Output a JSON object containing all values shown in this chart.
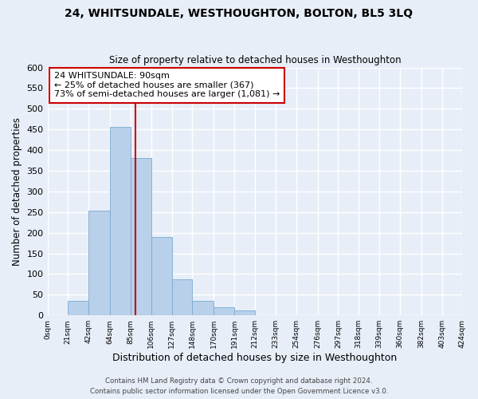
{
  "title": "24, WHITSUNDALE, WESTHOUGHTON, BOLTON, BL5 3LQ",
  "subtitle": "Size of property relative to detached houses in Westhoughton",
  "xlabel": "Distribution of detached houses by size in Westhoughton",
  "ylabel": "Number of detached properties",
  "bin_edges": [
    0,
    21,
    42,
    64,
    85,
    106,
    127,
    148,
    170,
    191,
    212,
    233,
    254,
    276,
    297,
    318,
    339,
    360,
    382,
    403,
    424
  ],
  "bar_heights": [
    0,
    35,
    253,
    457,
    380,
    190,
    88,
    35,
    20,
    12,
    0,
    0,
    0,
    0,
    0,
    0,
    0,
    0,
    0,
    0
  ],
  "bar_color": "#b8d0ea",
  "bar_edge_color": "#7aaacf",
  "vline_x": 90,
  "vline_color": "#cc0000",
  "ylim": [
    0,
    600
  ],
  "yticks": [
    0,
    50,
    100,
    150,
    200,
    250,
    300,
    350,
    400,
    450,
    500,
    550,
    600
  ],
  "annotation_line1": "24 WHITSUNDALE: 90sqm",
  "annotation_line2": "← 25% of detached houses are smaller (367)",
  "annotation_line3": "73% of semi-detached houses are larger (1,081) →",
  "annotation_box_color": "#ffffff",
  "annotation_box_edge": "#cc0000",
  "footer1": "Contains HM Land Registry data © Crown copyright and database right 2024.",
  "footer2": "Contains public sector information licensed under the Open Government Licence v3.0.",
  "tick_labels": [
    "0sqm",
    "21sqm",
    "42sqm",
    "64sqm",
    "85sqm",
    "106sqm",
    "127sqm",
    "148sqm",
    "170sqm",
    "191sqm",
    "212sqm",
    "233sqm",
    "254sqm",
    "276sqm",
    "297sqm",
    "318sqm",
    "339sqm",
    "360sqm",
    "382sqm",
    "403sqm",
    "424sqm"
  ],
  "background_color": "#e8eef8",
  "grid_color": "#ffffff",
  "xlim": [
    0,
    424
  ]
}
